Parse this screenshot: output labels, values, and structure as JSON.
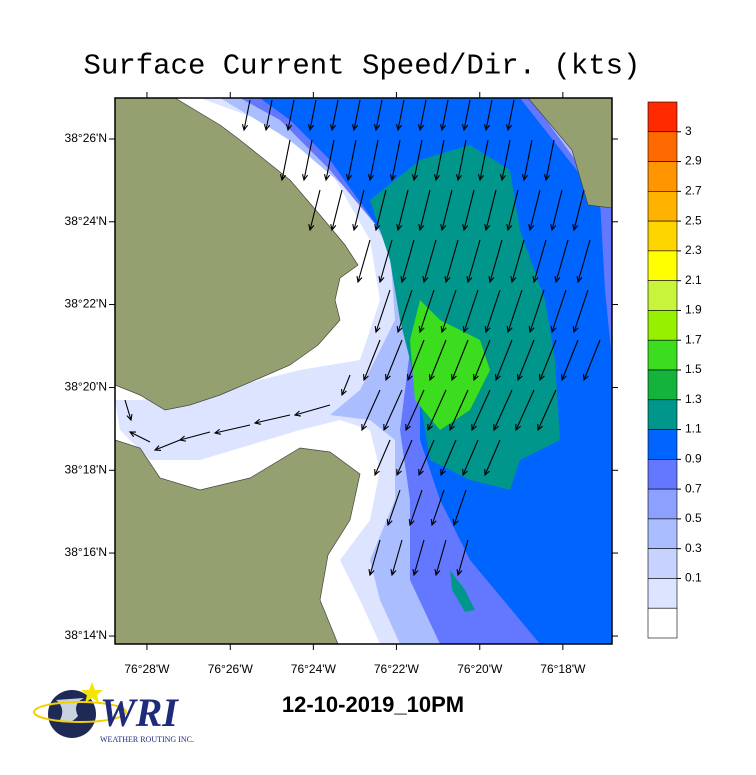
{
  "map": {
    "title": "Surface Current Speed/Dir. (kts)",
    "xlim": [
      -76.4795,
      -76.2803
    ],
    "ylim": [
      38.2301,
      38.4498
    ],
    "lat_ticks": [
      {
        "value": 38.4333,
        "label": "38°26'N"
      },
      {
        "value": 38.4,
        "label": "38°24'N"
      },
      {
        "value": 38.3667,
        "label": "38°22'N"
      },
      {
        "value": 38.3333,
        "label": "38°20'N"
      },
      {
        "value": 38.3,
        "label": "38°18'N"
      },
      {
        "value": 38.2667,
        "label": "38°16'N"
      },
      {
        "value": 38.2333,
        "label": "38°14'N"
      }
    ],
    "lon_ticks": [
      {
        "value": -76.4667,
        "label": "76°28'W"
      },
      {
        "value": -76.4333,
        "label": "76°26'W"
      },
      {
        "value": -76.4,
        "label": "76°24'W"
      },
      {
        "value": -76.3667,
        "label": "76°22'W"
      },
      {
        "value": -76.3333,
        "label": "76°20'W"
      },
      {
        "value": -76.3,
        "label": "76°18'W"
      }
    ]
  },
  "colorbar": {
    "levels": [
      3,
      2.9,
      2.7,
      2.5,
      2.3,
      2.1,
      1.9,
      1.7,
      1.5,
      1.3,
      1.1,
      0.9,
      0.7,
      0.5,
      0.3,
      0.1
    ],
    "colors": [
      "#ff2a00",
      "#ff6a00",
      "#ff9500",
      "#ffb300",
      "#ffd500",
      "#ffff00",
      "#c8f53c",
      "#96f000",
      "#3cdc1e",
      "#14b43c",
      "#00968c",
      "#0064ff",
      "#6478ff",
      "#8ca0ff",
      "#aabeff",
      "#c8d2ff",
      "#dce4ff"
    ]
  },
  "date_label": "12-10-2019_10PM",
  "logo": {
    "name": "WRI",
    "tagline": "WEATHER ROUTING INC."
  }
}
